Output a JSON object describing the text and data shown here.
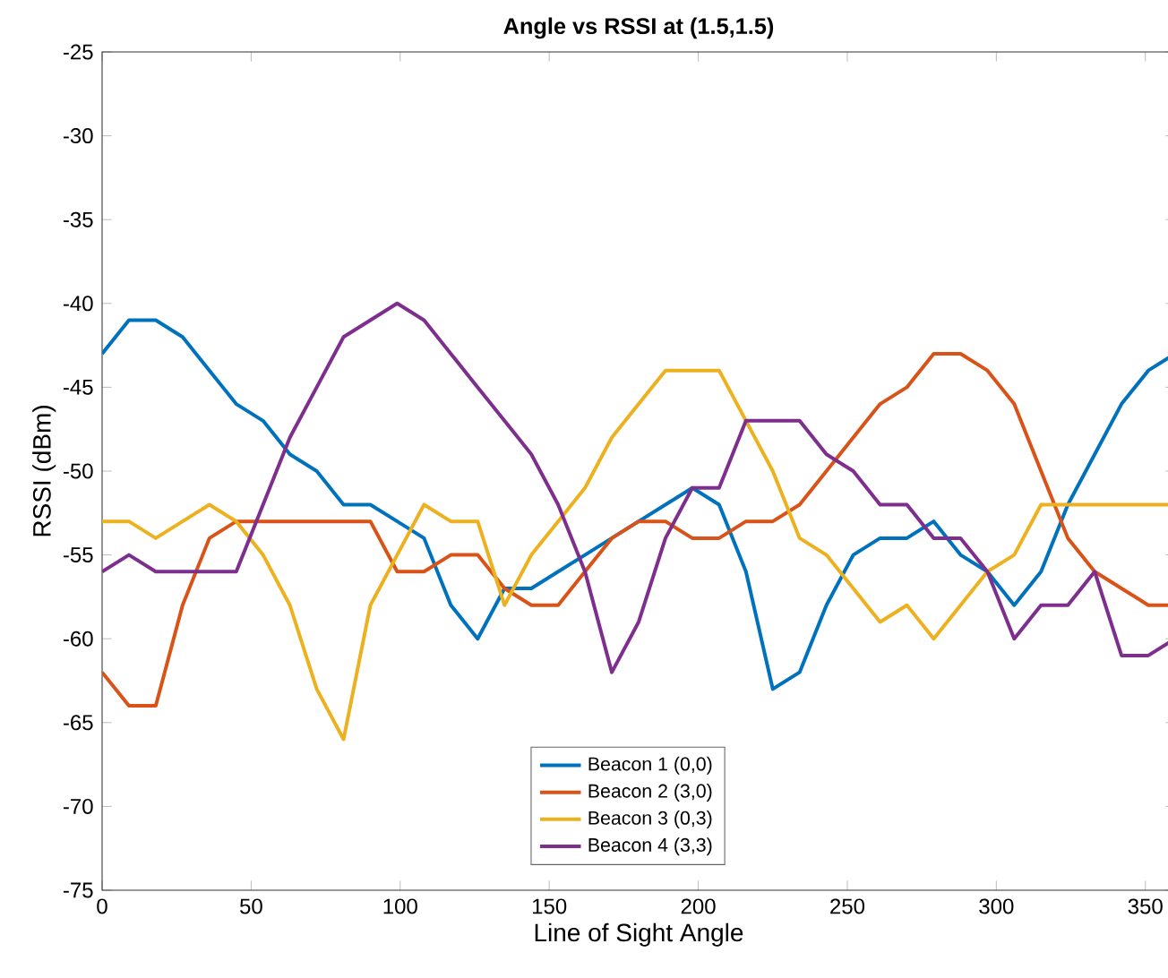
{
  "chart_data": {
    "type": "line",
    "title": "Angle vs RSSI at (1.5,1.5)",
    "xlabel": "Line of Sight Angle",
    "ylabel": "RSSI (dBm)",
    "x": [
      0,
      9,
      18,
      27,
      36,
      45,
      54,
      63,
      72,
      81,
      90,
      99,
      108,
      117,
      126,
      135,
      144,
      153,
      162,
      171,
      180,
      189,
      198,
      207,
      216,
      225,
      234,
      243,
      252,
      261,
      270,
      279,
      288,
      297,
      306,
      315,
      324,
      333,
      342,
      351,
      360
    ],
    "series": [
      {
        "name": "Beacon 1 (0,0)",
        "color": "#0072bd",
        "values": [
          -43,
          -41,
          -41,
          -42,
          -44,
          -46,
          -47,
          -49,
          -50,
          -52,
          -52,
          -53,
          -54,
          -58,
          -60,
          -57,
          -57,
          -56,
          -55,
          -54,
          -53,
          -52,
          -51,
          -52,
          -56,
          -63,
          -62,
          -58,
          -55,
          -54,
          -54,
          -53,
          -55,
          -56,
          -58,
          -56,
          -52,
          -49,
          -46,
          -44,
          -43
        ]
      },
      {
        "name": "Beacon 2 (3,0)",
        "color": "#d95319",
        "values": [
          -62,
          -64,
          -64,
          -58,
          -54,
          -53,
          -53,
          -53,
          -53,
          -53,
          -53,
          -56,
          -56,
          -55,
          -55,
          -57,
          -58,
          -58,
          -56,
          -54,
          -53,
          -53,
          -54,
          -54,
          -53,
          -53,
          -52,
          -50,
          -48,
          -46,
          -45,
          -43,
          -43,
          -44,
          -46,
          -50,
          -54,
          -56,
          -57,
          -58,
          -58
        ]
      },
      {
        "name": "Beacon 3 (0,3)",
        "color": "#edb120",
        "values": [
          -53,
          -53,
          -54,
          -53,
          -52,
          -53,
          -55,
          -58,
          -63,
          -66,
          -58,
          -55,
          -52,
          -53,
          -53,
          -58,
          -55,
          -53,
          -51,
          -48,
          -46,
          -44,
          -44,
          -44,
          -47,
          -50,
          -54,
          -55,
          -57,
          -59,
          -58,
          -60,
          -58,
          -56,
          -55,
          -52,
          -52,
          -52,
          -52,
          -52,
          -52
        ]
      },
      {
        "name": "Beacon 4 (3,3)",
        "color": "#7e2f8e",
        "values": [
          -56,
          -55,
          -56,
          -56,
          -56,
          -56,
          -52,
          -48,
          -45,
          -42,
          -41,
          -40,
          -41,
          -43,
          -45,
          -47,
          -49,
          -52,
          -56,
          -62,
          -59,
          -54,
          -51,
          -51,
          -47,
          -47,
          -47,
          -49,
          -50,
          -52,
          -52,
          -54,
          -54,
          -56,
          -60,
          -58,
          -58,
          -56,
          -61,
          -61,
          -60
        ]
      }
    ],
    "xlim": [
      0,
      360
    ],
    "ylim": [
      -75,
      -25
    ],
    "xticks": [
      0,
      50,
      100,
      150,
      200,
      250,
      300,
      350
    ],
    "yticks": [
      -75,
      -70,
      -65,
      -60,
      -55,
      -50,
      -45,
      -40,
      -35,
      -30,
      -25
    ],
    "legend": "bottom",
    "line_style": "solid",
    "marker": "none",
    "grid": false
  }
}
